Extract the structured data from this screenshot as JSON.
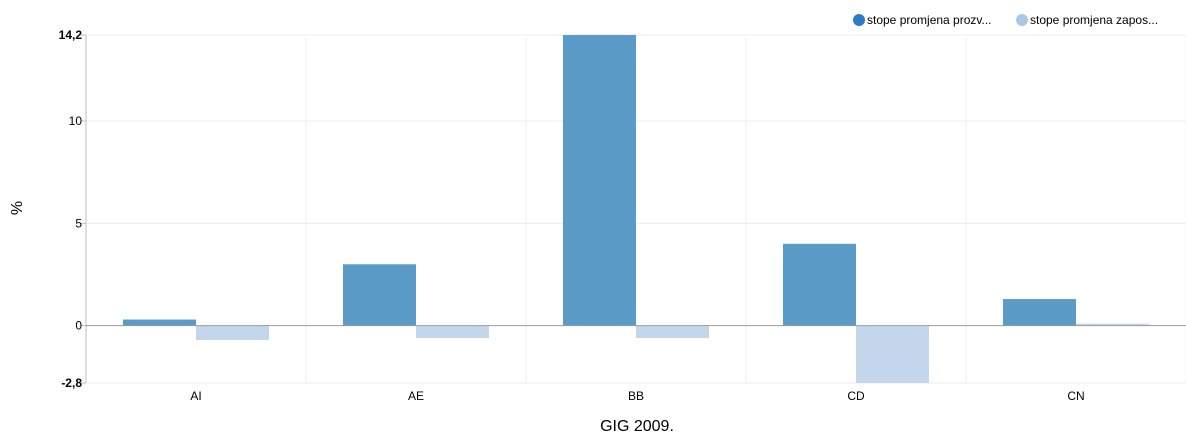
{
  "chart_data": {
    "type": "bar",
    "categories": [
      "AI",
      "AE",
      "BB",
      "CD",
      "CN"
    ],
    "series": [
      {
        "name": "stope promjena prozv...",
        "color": "#5b9bc8",
        "values": [
          0.3,
          3.0,
          14.2,
          4.0,
          1.3
        ]
      },
      {
        "name": "stope promjena zapos...",
        "color": "#c4d6ec",
        "values": [
          -0.7,
          -0.6,
          -0.6,
          -2.8,
          0.1
        ]
      }
    ],
    "xlabel": "GIG 2009.",
    "ylabel": "%",
    "ylim": [
      -2.8,
      14.2
    ],
    "yticks": [
      {
        "value": 14.2,
        "label": "14,2",
        "bold": true
      },
      {
        "value": 10,
        "label": "10",
        "bold": false
      },
      {
        "value": 5,
        "label": "5",
        "bold": false
      },
      {
        "value": 0,
        "label": "0",
        "bold": false
      },
      {
        "value": -2.8,
        "label": "-2,8",
        "bold": true
      }
    ],
    "grid": true,
    "legend_position": "top-right",
    "legend_marker_colors": [
      "#2a7cc6",
      "#a9c8e8"
    ]
  }
}
